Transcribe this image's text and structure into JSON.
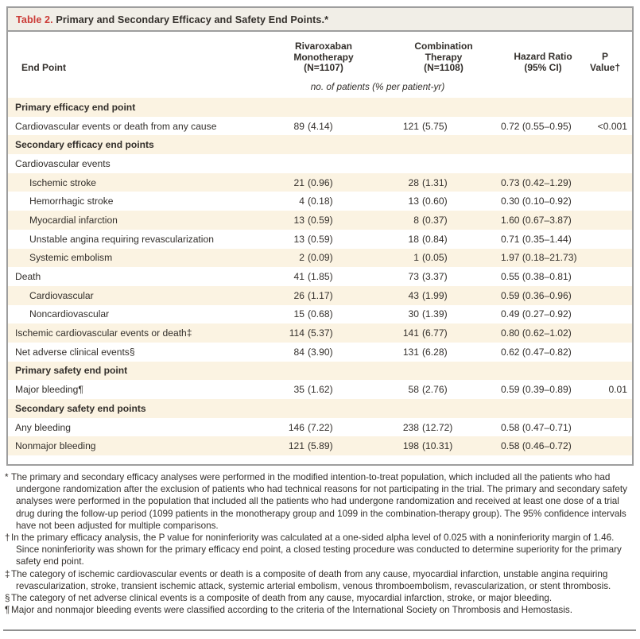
{
  "table": {
    "title_label": "Table 2.",
    "title_text": " Primary and Secondary Efficacy and Safety End Points.*",
    "columns": {
      "endpoint": "End Point",
      "mono": {
        "l1": "Rivaroxaban",
        "l2": "Monotherapy",
        "l3": "(N=1107)"
      },
      "comb": {
        "l1": "Combination",
        "l2": "Therapy",
        "l3": "(N=1108)"
      },
      "hr": {
        "l1": "Hazard Ratio",
        "l2": "(95% CI)"
      },
      "pval": {
        "l1": "P",
        "l2": "Value†"
      }
    },
    "units_note": "no. of patients (% per patient-yr)",
    "rows": [
      {
        "type": "section",
        "label": "Primary efficacy end point"
      },
      {
        "type": "row",
        "indent": 0,
        "label": "Cardiovascular events or death from any cause",
        "mono_n": "89",
        "mono_p": "(4.14)",
        "comb_n": "121",
        "comb_p": "(5.75)",
        "hr": "0.72 (0.55–0.95)",
        "pval": "<0.001"
      },
      {
        "type": "section",
        "label": "Secondary efficacy end points"
      },
      {
        "type": "row",
        "indent": 0,
        "label": "Cardiovascular events",
        "mono_n": "",
        "mono_p": "",
        "comb_n": "",
        "comb_p": "",
        "hr": "",
        "pval": ""
      },
      {
        "type": "row",
        "indent": 1,
        "label": "Ischemic stroke",
        "mono_n": "21",
        "mono_p": "(0.96)",
        "comb_n": "28",
        "comb_p": "(1.31)",
        "hr": "0.73 (0.42–1.29)",
        "pval": ""
      },
      {
        "type": "row",
        "indent": 1,
        "label": "Hemorrhagic stroke",
        "mono_n": "4",
        "mono_p": "(0.18)",
        "comb_n": "13",
        "comb_p": "(0.60)",
        "hr": "0.30 (0.10–0.92)",
        "pval": ""
      },
      {
        "type": "row",
        "indent": 1,
        "label": "Myocardial infarction",
        "mono_n": "13",
        "mono_p": "(0.59)",
        "comb_n": "8",
        "comb_p": "(0.37)",
        "hr": "1.60 (0.67–3.87)",
        "pval": ""
      },
      {
        "type": "row",
        "indent": 1,
        "label": "Unstable angina requiring revascularization",
        "mono_n": "13",
        "mono_p": "(0.59)",
        "comb_n": "18",
        "comb_p": "(0.84)",
        "hr": "0.71 (0.35–1.44)",
        "pval": ""
      },
      {
        "type": "row",
        "indent": 1,
        "label": "Systemic embolism",
        "mono_n": "2",
        "mono_p": "(0.09)",
        "comb_n": "1",
        "comb_p": "(0.05)",
        "hr": "1.97 (0.18–21.73)",
        "pval": ""
      },
      {
        "type": "row",
        "indent": 0,
        "label": "Death",
        "mono_n": "41",
        "mono_p": "(1.85)",
        "comb_n": "73",
        "comb_p": "(3.37)",
        "hr": "0.55 (0.38–0.81)",
        "pval": ""
      },
      {
        "type": "row",
        "indent": 1,
        "label": "Cardiovascular",
        "mono_n": "26",
        "mono_p": "(1.17)",
        "comb_n": "43",
        "comb_p": "(1.99)",
        "hr": "0.59 (0.36–0.96)",
        "pval": ""
      },
      {
        "type": "row",
        "indent": 1,
        "label": "Noncardiovascular",
        "mono_n": "15",
        "mono_p": "(0.68)",
        "comb_n": "30",
        "comb_p": "(1.39)",
        "hr": "0.49 (0.27–0.92)",
        "pval": ""
      },
      {
        "type": "row",
        "indent": 0,
        "label": "Ischemic cardiovascular events or death‡",
        "mono_n": "114",
        "mono_p": "(5.37)",
        "comb_n": "141",
        "comb_p": "(6.77)",
        "hr": "0.80 (0.62–1.02)",
        "pval": ""
      },
      {
        "type": "row",
        "indent": 0,
        "label": "Net adverse clinical events§",
        "mono_n": "84",
        "mono_p": "(3.90)",
        "comb_n": "131",
        "comb_p": "(6.28)",
        "hr": "0.62 (0.47–0.82)",
        "pval": ""
      },
      {
        "type": "section",
        "label": "Primary safety end point"
      },
      {
        "type": "row",
        "indent": 0,
        "label": "Major bleeding¶",
        "mono_n": "35",
        "mono_p": "(1.62)",
        "comb_n": "58",
        "comb_p": "(2.76)",
        "hr": "0.59 (0.39–0.89)",
        "pval": "0.01"
      },
      {
        "type": "section",
        "label": "Secondary safety end points"
      },
      {
        "type": "row",
        "indent": 0,
        "label": "Any bleeding",
        "mono_n": "146",
        "mono_p": "(7.22)",
        "comb_n": "238",
        "comb_p": "(12.72)",
        "hr": "0.58 (0.47–0.71)",
        "pval": ""
      },
      {
        "type": "row",
        "indent": 0,
        "label": "Nonmajor bleeding",
        "mono_n": "121",
        "mono_p": "(5.89)",
        "comb_n": "198",
        "comb_p": "(10.31)",
        "hr": "0.58 (0.46–0.72)",
        "pval": ""
      }
    ]
  },
  "footnotes": [
    {
      "marker": "*",
      "text": "The primary and secondary efficacy analyses were performed in the modified intention-to-treat population, which included all the patients who had undergone randomization after the exclusion of patients who had technical reasons for not participating in the trial. The primary and secondary safety analyses were performed in the population that included all the patients who had undergone randomization and received at least one dose of a trial drug during the follow-up period (1099 patients in the monotherapy group and 1099 in the combination-therapy group). The 95% confidence intervals have not been adjusted for multiple comparisons."
    },
    {
      "marker": "†",
      "text": "In the primary efficacy analysis, the P value for noninferiority was calculated at a one-sided alpha level of 0.025 with a noninferiority margin of 1.46. Since noninferiority was shown for the primary efficacy end point, a closed testing procedure was conducted to determine superiority for the primary safety end point."
    },
    {
      "marker": "‡",
      "text": "The category of ischemic cardiovascular events or death is a composite of death from any cause, myocardial infarction, unstable angina requiring revascularization, stroke, transient ischemic attack, systemic arterial embolism, venous thromboembolism, revascularization, or stent thrombosis."
    },
    {
      "marker": "§",
      "text": "The category of net adverse clinical events is a composite of death from any cause, myocardial infarction, stroke, or major bleeding."
    },
    {
      "marker": "¶",
      "text": "Major and nonmajor bleeding events were classified according to the criteria of the International Society on Thrombosis and Hemostasis."
    }
  ],
  "colors": {
    "accent_red": "#cb3a36",
    "row_stripe_cream": "#fbf3e2",
    "title_bar_background": "#f1eee7",
    "table_border_gray": "#9e9e9e",
    "text_ink": "#332f2b"
  }
}
